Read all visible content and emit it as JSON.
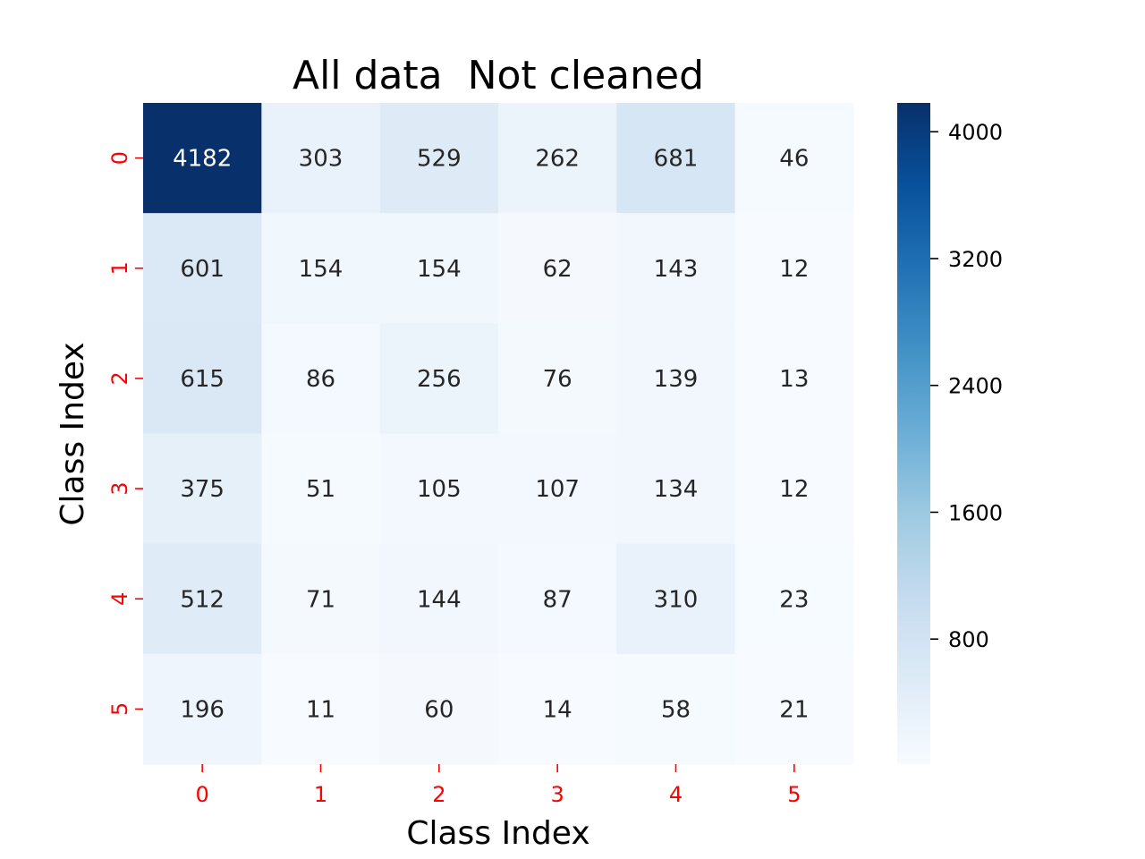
{
  "chart_data": {
    "type": "heatmap",
    "title": "All data  Not cleaned",
    "xlabel": "Class Index",
    "ylabel": "Class Index",
    "x_categories": [
      "0",
      "1",
      "2",
      "3",
      "4",
      "5"
    ],
    "y_categories": [
      "0",
      "1",
      "2",
      "3",
      "4",
      "5"
    ],
    "values": [
      [
        4182,
        303,
        529,
        262,
        681,
        46
      ],
      [
        601,
        154,
        154,
        62,
        143,
        12
      ],
      [
        615,
        86,
        256,
        76,
        139,
        13
      ],
      [
        375,
        51,
        105,
        107,
        134,
        12
      ],
      [
        512,
        71,
        144,
        87,
        310,
        23
      ],
      [
        196,
        11,
        60,
        14,
        58,
        21
      ]
    ],
    "colormap": "Blues",
    "value_range": [
      11,
      4182
    ],
    "colorbar_ticks": [
      800,
      1600,
      2400,
      3200,
      4000
    ],
    "colorbar_tick_labels": [
      "800",
      "1600",
      "2400",
      "3200",
      "4000"
    ],
    "tick_label_color": "#ff0000"
  }
}
